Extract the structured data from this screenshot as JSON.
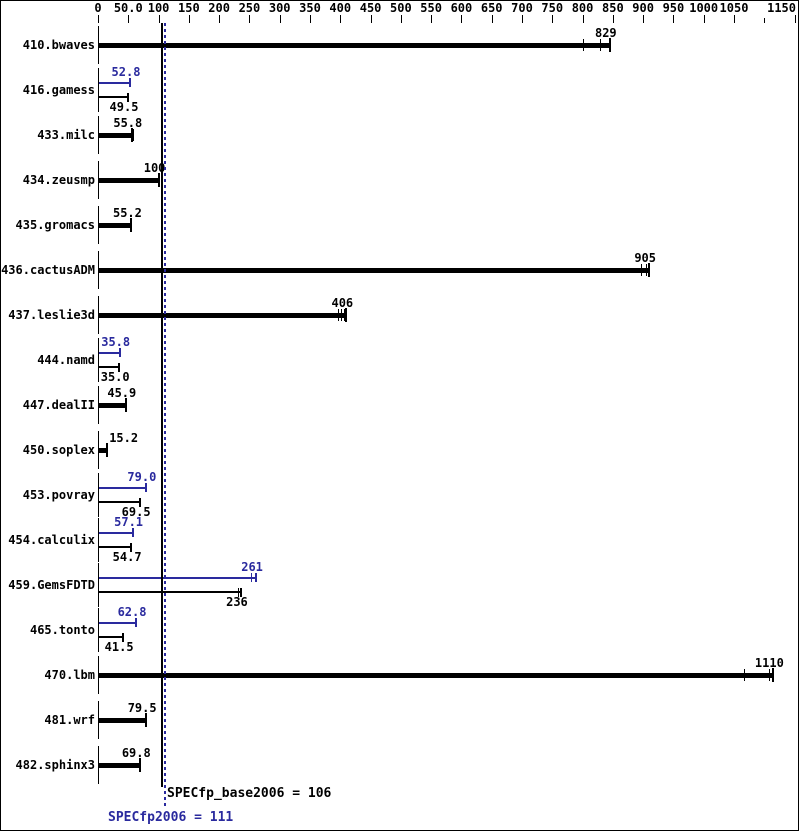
{
  "chart_data": {
    "type": "bar",
    "orientation": "horizontal",
    "x_axis": {
      "min": 0,
      "max": 1150,
      "tick_step": 50,
      "tick_labels": [
        "0",
        "50.0",
        "100",
        "150",
        "200",
        "250",
        "300",
        "350",
        "400",
        "450",
        "500",
        "550",
        "600",
        "650",
        "700",
        "750",
        "800",
        "850",
        "900",
        "950",
        "1000",
        "1050",
        "",
        "1150"
      ]
    },
    "series_meta": {
      "base_name": "base",
      "peak_name": "peak",
      "base_color": "#000000",
      "peak_color": "#2a2a9e"
    },
    "benchmarks": [
      {
        "name": "410.bwaves",
        "base": {
          "value": 829,
          "label": "829",
          "bar_end": 845,
          "run_marks": [
            800,
            829
          ]
        }
      },
      {
        "name": "416.gamess",
        "peak": {
          "value": 52.8,
          "label": "52.8"
        },
        "base": {
          "value": 49.5,
          "label": "49.5"
        }
      },
      {
        "name": "433.milc",
        "base": {
          "value": 55.8,
          "label": "55.8",
          "run_marks": [
            58.5
          ]
        }
      },
      {
        "name": "434.zeusmp",
        "base": {
          "value": 100,
          "label": "100"
        }
      },
      {
        "name": "435.gromacs",
        "base": {
          "value": 55.2,
          "label": "55.2"
        }
      },
      {
        "name": "436.cactusADM",
        "base": {
          "value": 905,
          "label": "905",
          "bar_end": 910,
          "run_marks": [
            897,
            905
          ]
        }
      },
      {
        "name": "437.leslie3d",
        "base": {
          "value": 406,
          "label": "406",
          "bar_end": 410,
          "run_marks": [
            397,
            402,
            406
          ]
        }
      },
      {
        "name": "444.namd",
        "peak": {
          "value": 35.8,
          "label": "35.8"
        },
        "base": {
          "value": 35.0,
          "label": "35.0"
        }
      },
      {
        "name": "447.dealII",
        "base": {
          "value": 45.9,
          "label": "45.9"
        }
      },
      {
        "name": "450.soplex",
        "base": {
          "value": 15.2,
          "label": "15.2",
          "label_align": "left"
        }
      },
      {
        "name": "453.povray",
        "peak": {
          "value": 79.0,
          "label": "79.0"
        },
        "base": {
          "value": 69.5,
          "label": "69.5"
        }
      },
      {
        "name": "454.calculix",
        "peak": {
          "value": 57.1,
          "label": "57.1"
        },
        "base": {
          "value": 54.7,
          "label": "54.7"
        }
      },
      {
        "name": "459.GemsFDTD",
        "peak": {
          "value": 261,
          "label": "261",
          "run_marks": [
            252
          ]
        },
        "base": {
          "value": 236,
          "label": "236",
          "run_marks": [
            231
          ]
        }
      },
      {
        "name": "465.tonto",
        "peak": {
          "value": 62.8,
          "label": "62.8"
        },
        "base": {
          "value": 41.5,
          "label": "41.5"
        }
      },
      {
        "name": "470.lbm",
        "base": {
          "value": 1110,
          "label": "1110",
          "bar_end": 1115,
          "run_marks": [
            1066,
            1108
          ]
        }
      },
      {
        "name": "481.wrf",
        "base": {
          "value": 79.5,
          "label": "79.5"
        }
      },
      {
        "name": "482.sphinx3",
        "base": {
          "value": 69.8,
          "label": "69.8"
        }
      }
    ],
    "reference_lines": [
      {
        "id": "base",
        "value": 106,
        "label": "SPECfp_base2006 = 106",
        "color": "#000000",
        "style": "solid"
      },
      {
        "id": "peak",
        "value": 111,
        "label": "SPECfp2006 = 111",
        "color": "#2a2a9e",
        "style": "dotted"
      }
    ]
  }
}
